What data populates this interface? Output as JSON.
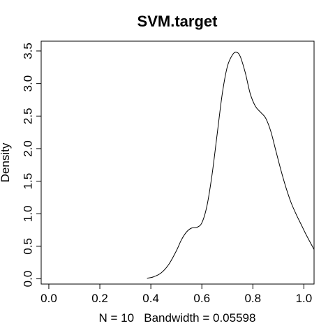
{
  "chart_data": {
    "type": "line",
    "title": "SVM.target",
    "xlabel": "N = 10   Bandwidth = 0.05598",
    "ylabel": "Density",
    "xlim": [
      -0.03,
      1.04
    ],
    "ylim": [
      -0.08,
      3.65
    ],
    "x_axis_range": [
      0.0,
      1.0
    ],
    "y_axis_range": [
      0.0,
      3.5
    ],
    "x_ticks": [
      "0.0",
      "0.2",
      "0.4",
      "0.6",
      "0.8",
      "1.0"
    ],
    "x_tick_values": [
      0.0,
      0.2,
      0.4,
      0.6,
      0.8,
      1.0
    ],
    "y_ticks": [
      "0.0",
      "0.5",
      "1.0",
      "1.5",
      "2.0",
      "2.5",
      "3.0",
      "3.5"
    ],
    "y_tick_values": [
      0.0,
      0.5,
      1.0,
      1.5,
      2.0,
      2.5,
      3.0,
      3.5
    ],
    "grid": false,
    "series": [
      {
        "x": [
          0.385,
          0.41,
          0.44,
          0.47,
          0.5,
          0.52,
          0.54,
          0.56,
          0.58,
          0.6,
          0.62,
          0.64,
          0.66,
          0.68,
          0.7,
          0.72,
          0.735,
          0.75,
          0.77,
          0.79,
          0.81,
          0.83,
          0.85,
          0.87,
          0.89,
          0.91,
          0.93,
          0.95,
          0.97,
          0.99,
          1.01,
          1.04
        ],
        "y": [
          0.01,
          0.03,
          0.09,
          0.22,
          0.43,
          0.6,
          0.72,
          0.78,
          0.79,
          0.86,
          1.12,
          1.6,
          2.22,
          2.84,
          3.26,
          3.44,
          3.48,
          3.42,
          3.17,
          2.84,
          2.65,
          2.56,
          2.47,
          2.27,
          1.97,
          1.67,
          1.4,
          1.17,
          0.99,
          0.83,
          0.67,
          0.45
        ]
      }
    ]
  }
}
